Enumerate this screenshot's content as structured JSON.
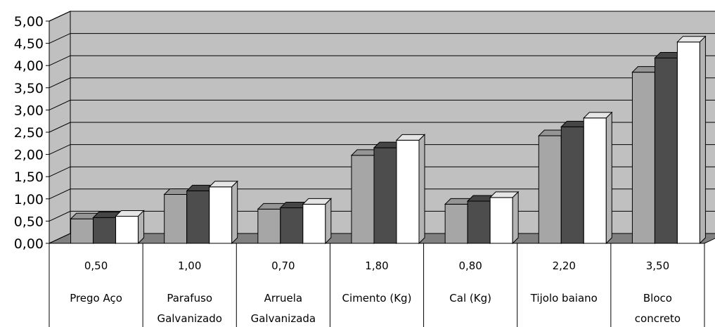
{
  "chart_data": {
    "type": "bar",
    "categories": [
      {
        "label": [
          "Prego Aço"
        ],
        "value_label": "0,50"
      },
      {
        "label": [
          "Parafuso",
          "Galvanizado"
        ],
        "value_label": "1,00"
      },
      {
        "label": [
          "Arruela",
          "Galvanizada"
        ],
        "value_label": "0,70"
      },
      {
        "label": [
          "Cimento (Kg)"
        ],
        "value_label": "1,80"
      },
      {
        "label": [
          "Cal (Kg)"
        ],
        "value_label": "0,80"
      },
      {
        "label": [
          "Tijolo baiano"
        ],
        "value_label": "2,20"
      },
      {
        "label": [
          "Bloco",
          "concreto"
        ],
        "value_label": "3,50"
      }
    ],
    "series": [
      {
        "color": "#a6a6a6",
        "values": [
          0.55,
          1.1,
          0.77,
          1.98,
          0.88,
          2.42,
          3.85
        ]
      },
      {
        "color": "#4d4d4d",
        "values": [
          0.58,
          1.18,
          0.8,
          2.15,
          0.95,
          2.62,
          4.17
        ]
      },
      {
        "color": "#ffffff",
        "values": [
          0.61,
          1.27,
          0.88,
          2.32,
          1.03,
          2.82,
          4.53
        ]
      }
    ],
    "ylim": [
      0,
      5
    ],
    "ytick_step": 0.5,
    "ytick_labels": [
      "0,00",
      "0,50",
      "1,00",
      "1,50",
      "2,00",
      "2,50",
      "3,00",
      "3,50",
      "4,00",
      "4,50",
      "5,00"
    ],
    "grid": true,
    "style": "3d-clustered-bar-with-data-table",
    "wall_color": "#c0c0c0",
    "floor_color": "#808080"
  }
}
